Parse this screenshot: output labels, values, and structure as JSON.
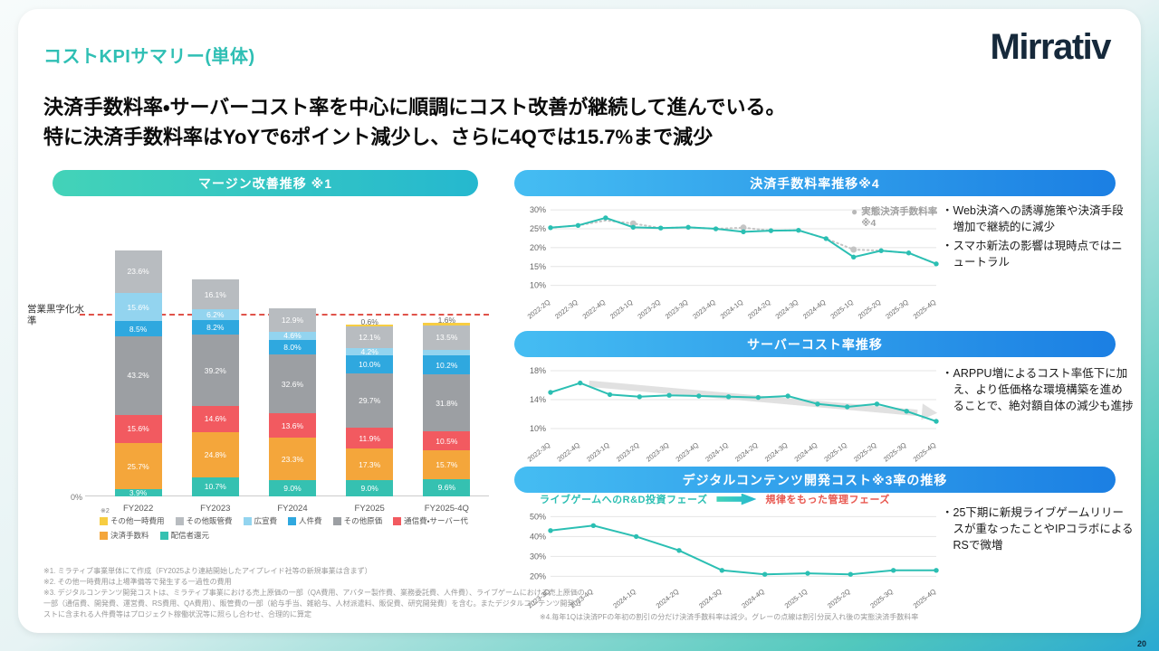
{
  "page": {
    "title": "コストKPIサマリー(単体)",
    "logo_text": "Mirrativ",
    "headline1": "決済手数料率・サーバーコスト率を中心に順調にコスト改善が継続して進んでいる。",
    "headline2": "特に決済手数料率はYoYで6ポイント減少し、さらに4Qでは15.7%まで減少",
    "page_number": "20"
  },
  "colors": {
    "accent_teal": "#2fbfb4",
    "pill_blue": "#1b7fe3",
    "threshold_red": "#e0534a"
  },
  "chart_data": [
    {
      "id": "margin",
      "type": "bar",
      "stacked": true,
      "title": "マージン改善推移 ※1",
      "categories": [
        "FY2022",
        "FY2023",
        "FY2024",
        "FY2025",
        "FY2025-4Q"
      ],
      "series": [
        {
          "name": "配信者還元",
          "color": "#35c1b1",
          "values": [
            3.9,
            10.7,
            9.0,
            9.0,
            9.6
          ]
        },
        {
          "name": "決済手数料",
          "color": "#f4a63b",
          "values": [
            25.7,
            24.8,
            23.3,
            17.3,
            15.7
          ]
        },
        {
          "name": "通信費・サーバー代",
          "color": "#f25a60",
          "values": [
            15.6,
            14.6,
            13.6,
            11.9,
            10.5
          ]
        },
        {
          "name": "その他原価",
          "color": "#9c9fa3",
          "values": [
            43.2,
            39.2,
            32.6,
            29.7,
            31.8
          ]
        },
        {
          "name": "人件費",
          "color": "#2fa8df",
          "values": [
            8.5,
            8.2,
            8.0,
            10.0,
            10.2
          ]
        },
        {
          "name": "広宣費",
          "color": "#93d4ef",
          "values": [
            15.6,
            6.2,
            4.6,
            4.2,
            3.3
          ]
        },
        {
          "name": "その他販管費",
          "color": "#b8bcc0",
          "values": [
            23.6,
            16.1,
            12.9,
            12.1,
            13.5
          ]
        },
        {
          "name": "その他一時費用",
          "color": "#f7cd42",
          "values": [
            0,
            0,
            0,
            0.6,
            1.6
          ]
        }
      ],
      "threshold": {
        "value": 100,
        "label": "営業黒字化水準"
      },
      "y_zero_label": "0%",
      "legend_rows": [
        [
          "その他一時費用",
          "その他販管費",
          "広宣費",
          "人件費",
          "その他原価",
          "通信費・サーバー代"
        ],
        [
          "決済手数料",
          "配信者還元"
        ]
      ],
      "legend_note": "※2"
    },
    {
      "id": "payment",
      "type": "line",
      "title": "決済手数料率推移※4",
      "x": [
        "2022-2Q",
        "2022-3Q",
        "2022-4Q",
        "2023-1Q",
        "2023-2Q",
        "2023-3Q",
        "2023-4Q",
        "2024-1Q",
        "2024-2Q",
        "2024-3Q",
        "2024-4Q",
        "2025-1Q",
        "2025-2Q",
        "2025-3Q",
        "2025-4Q"
      ],
      "y_ticks": [
        10,
        15,
        20,
        25,
        30
      ],
      "y_min": 8,
      "y_max": 31,
      "legend": "実態決済手数料率※4",
      "series": [
        {
          "name": "実態決済手数料率",
          "color": "#c4c4c4",
          "style": "dotted",
          "values": [
            25.3,
            25.9,
            27.2,
            26.4,
            25.2,
            25.4,
            25.0,
            25.3,
            24.5,
            24.6,
            22.4,
            19.5,
            19.2,
            18.6,
            15.7
          ],
          "marker_indices": [
            3,
            7,
            11
          ]
        },
        {
          "name": "決済手数料率",
          "color": "#2bbfb3",
          "style": "solid",
          "values": [
            25.3,
            25.9,
            27.9,
            25.4,
            25.2,
            25.4,
            25.0,
            24.2,
            24.5,
            24.6,
            22.4,
            17.5,
            19.2,
            18.6,
            15.7
          ]
        }
      ]
    },
    {
      "id": "server",
      "type": "line",
      "title": "サーバーコスト率推移",
      "x": [
        "2022-3Q",
        "2022-4Q",
        "2023-1Q",
        "2023-2Q",
        "2023-3Q",
        "2023-4Q",
        "2024-1Q",
        "2024-2Q",
        "2024-3Q",
        "2024-4Q",
        "2025-1Q",
        "2025-2Q",
        "2025-3Q",
        "2025-4Q"
      ],
      "y_ticks": [
        10,
        14,
        18
      ],
      "y_min": 9,
      "y_max": 18.5,
      "trend_arrow": true,
      "series": [
        {
          "name": "サーバーコスト率",
          "color": "#2bbfb3",
          "style": "solid",
          "values": [
            15.0,
            16.3,
            14.7,
            14.4,
            14.6,
            14.5,
            14.4,
            14.3,
            14.5,
            13.4,
            13.0,
            13.4,
            12.4,
            11.0
          ]
        }
      ]
    },
    {
      "id": "digital",
      "type": "line",
      "title": "デジタルコンテンツ開発コスト※3率の推移",
      "x": [
        "2023-3Q",
        "2023-4Q",
        "2024-1Q",
        "2024-2Q",
        "2024-3Q",
        "2024-4Q",
        "2025-1Q",
        "2025-2Q",
        "2025-3Q",
        "2025-4Q"
      ],
      "y_ticks": [
        20,
        30,
        40,
        50
      ],
      "y_min": 17,
      "y_max": 52,
      "phase_labels": {
        "left": "ライブゲームへのR&D投資フェーズ",
        "right": "規律をもった管理フェーズ"
      },
      "series": [
        {
          "name": "デジタルコンテンツ開発コスト率",
          "color": "#2bbfb3",
          "style": "solid",
          "values": [
            43.0,
            45.5,
            40.0,
            33.0,
            23.0,
            21.0,
            21.5,
            21.0,
            23.0,
            23.0
          ]
        }
      ]
    }
  ],
  "bullets": {
    "payment": [
      "Web決済への誘導施策や決済手段増加で継続的に減少",
      "スマホ新法の影響は現時点ではニュートラル"
    ],
    "server": [
      "ARPPU増によるコスト率低下に加え、より低価格な環境構築を進めることで、絶対額自体の減少も進捗"
    ],
    "digital": [
      "25下期に新規ライブゲームリリースが重なったことやIPコラボによるRSで微増"
    ]
  },
  "footnotes": [
    "※1. ミラティブ事業単体にて作成（FY2025より連結開始したアイプレイド社等の新規事業は含まず）",
    "※2. その他一時費用は上場準備等で発生する一過性の費用",
    "※3. デジタルコンテンツ開発コストは、ミラティブ事業における売上原価の一部（QA費用、アバター製作費、業務委託費、人件費）、ライブゲームにおける売上原価の一部（通信費、開発費、運営費、RS費用、QA費用）、販管費の一部（給与手当、雑給与、人材派遣料、販促費、研究開発費）を含む。またデジタルコンテンツ開発コストに含まれる人件費等はプロジェクト稼働状況等に照らし合わせ、合理的に算定"
  ],
  "footnote4": "※4.毎年1Qは決済PFの年初の割引の分だけ決済手数料率は減少。グレーの点線は割引分戻入れ後の実態決済手数料率"
}
